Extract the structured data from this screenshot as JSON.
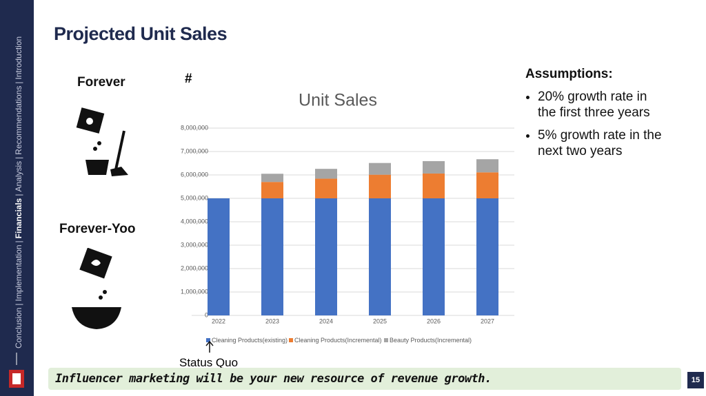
{
  "sidebar": {
    "items": [
      "Conclusion",
      "Implementation",
      "Financials",
      "Analysis",
      "Recommendations",
      "Introduction"
    ],
    "separator": "|",
    "active": 2
  },
  "header": {
    "title": "Projected Unit Sales"
  },
  "products": [
    {
      "label": "Forever"
    },
    {
      "label": "Forever-Yoo"
    }
  ],
  "hash_label": "#",
  "assumptions": {
    "title": "Assumptions:",
    "bullets": [
      "20% growth rate in the first three years",
      "5% growth rate in the next two years"
    ]
  },
  "status_quo": "Status Quo",
  "footer": {
    "message": "Influencer marketing will be your new resource of revenue growth.",
    "page": "15"
  },
  "chart_data": {
    "type": "stacked_bar",
    "title": "Unit Sales",
    "categories": [
      "2022",
      "2023",
      "2024",
      "2025",
      "2026",
      "2027"
    ],
    "series": [
      {
        "name": "Cleaning Products(existing)",
        "color": "#4472c4",
        "values": [
          5000000,
          5000000,
          5000000,
          5000000,
          5000000,
          5000000
        ]
      },
      {
        "name": "Cleaning Products(Incremental)",
        "color": "#ed7d31",
        "values": [
          0,
          700000,
          840000,
          1010000,
          1060000,
          1110000
        ]
      },
      {
        "name": "Beauty Products(Incremental)",
        "color": "#a5a5a5",
        "values": [
          0,
          350000,
          420000,
          500000,
          530000,
          560000
        ]
      }
    ],
    "ylim": [
      0,
      8000000
    ],
    "yticks": [
      0,
      {
        "value": 1000000,
        "label": "1,000,000"
      },
      {
        "value": 2000000,
        "label": "2,000,000"
      },
      {
        "value": 3000000,
        "label": "3,000,000"
      },
      {
        "value": 4000000,
        "label": "4,000,000"
      },
      {
        "value": 5000000,
        "label": "5,000,000"
      },
      {
        "value": 6000000,
        "label": "6,000,000"
      },
      {
        "value": 7000000,
        "label": "7,000,000"
      },
      {
        "value": 8000000,
        "label": "8,000,000"
      }
    ],
    "grid": true,
    "legend": "bottom"
  }
}
